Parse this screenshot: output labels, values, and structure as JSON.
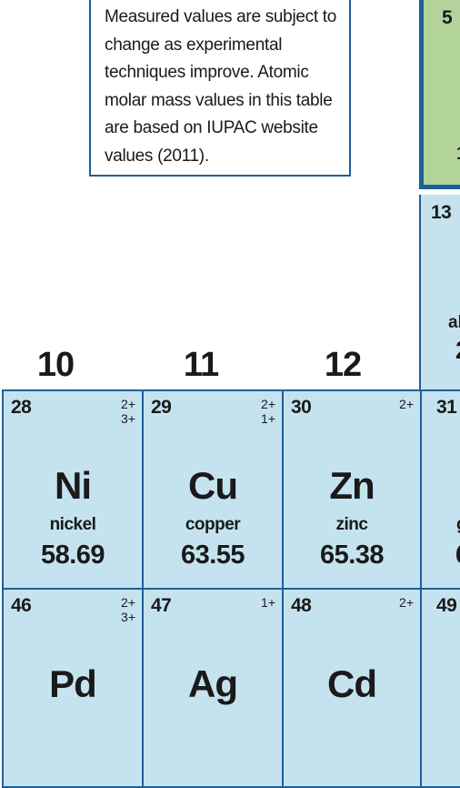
{
  "note": {
    "text": "Measured values are subject to change as experimental techniques improve. Atomic molar mass values in this table are based on IUPAC website values (2011)."
  },
  "groups": [
    "10",
    "11",
    "12"
  ],
  "cells": {
    "ni": {
      "number": "28",
      "ox1": "2+",
      "ox2": "3+",
      "symbol": "Ni",
      "name": "nickel",
      "mass": "58.69"
    },
    "cu": {
      "number": "29",
      "ox1": "2+",
      "ox2": "1+",
      "symbol": "Cu",
      "name": "copper",
      "mass": "63.55"
    },
    "zn": {
      "number": "30",
      "ox1": "2+",
      "symbol": "Zn",
      "name": "zinc",
      "mass": "65.38"
    },
    "pd": {
      "number": "46",
      "ox1": "2+",
      "ox2": "3+",
      "symbol": "Pd"
    },
    "ag": {
      "number": "47",
      "ox1": "1+",
      "symbol": "Ag"
    },
    "cd": {
      "number": "48",
      "ox1": "2+",
      "symbol": "Cd"
    }
  },
  "partial": {
    "b_number": "5",
    "b_frag": "1",
    "al_number": "13",
    "al_frag": "al",
    "al_frag2": "2",
    "ga_number": "31",
    "ga_frag": "g",
    "ga_frag2": "6",
    "in_number": "49"
  },
  "colors": {
    "cell_fill": "#c5e3ef",
    "border": "#1f5f99",
    "green_fill": "#b2d49a"
  }
}
